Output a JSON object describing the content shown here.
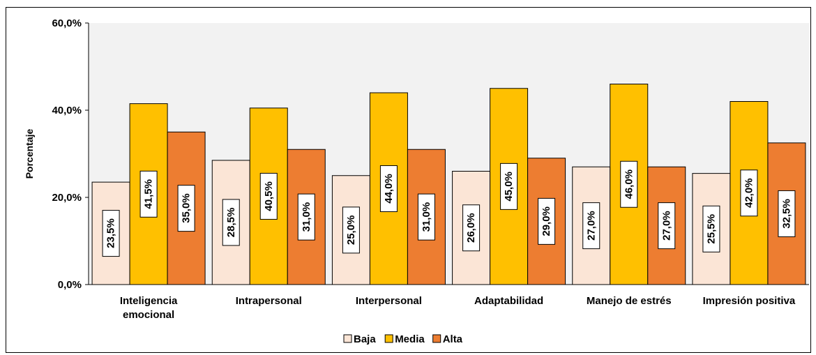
{
  "chart_data": {
    "type": "bar",
    "ylabel": "Porcentaje",
    "xlabel": "",
    "ylim": [
      0,
      60
    ],
    "y_ticks": [
      "0,0%",
      "20,0%",
      "40,0%",
      "60,0%"
    ],
    "y_tick_values": [
      0,
      20,
      40,
      60
    ],
    "grid": false,
    "legend_position": "bottom",
    "categories": [
      [
        "Inteligencia",
        "emocional"
      ],
      [
        "Intrapersonal"
      ],
      [
        "Interpersonal"
      ],
      [
        "Adaptabilidad"
      ],
      [
        "Manejo de estrés"
      ],
      [
        "Impresión positiva"
      ]
    ],
    "series": [
      {
        "name": "Baja",
        "color": "#FBE5D6",
        "values": [
          23.5,
          28.5,
          25.0,
          26.0,
          27.0,
          25.5
        ],
        "labels": [
          "23,5%",
          "28,5%",
          "25,0%",
          "26,0%",
          "27,0%",
          "25,5%"
        ]
      },
      {
        "name": "Media",
        "color": "#FFC000",
        "values": [
          41.5,
          40.5,
          44.0,
          45.0,
          46.0,
          42.0
        ],
        "labels": [
          "41,5%",
          "40,5%",
          "44,0%",
          "45,0%",
          "46,0%",
          "42,0%"
        ]
      },
      {
        "name": "Alta",
        "color": "#ED7D31",
        "values": [
          35.0,
          31.0,
          31.0,
          29.0,
          27.0,
          32.5
        ],
        "labels": [
          "35,0%",
          "31,0%",
          "31,0%",
          "29,0%",
          "27,0%",
          "32,5%"
        ]
      }
    ],
    "plot_background": "#F2F2F2"
  }
}
